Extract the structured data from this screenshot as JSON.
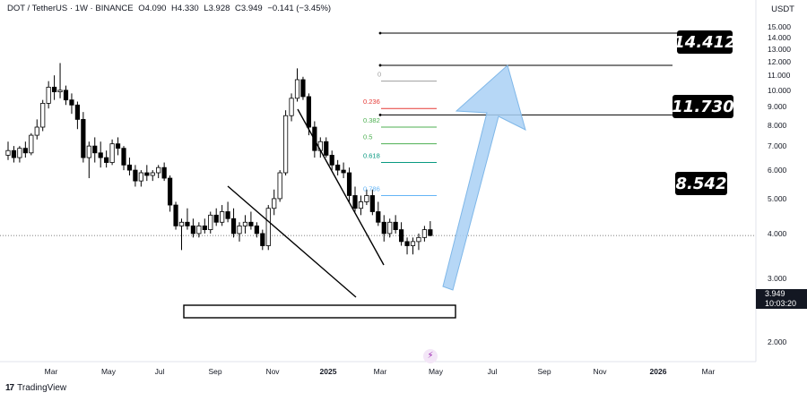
{
  "header": {
    "symbol": "DOT / TetherUS · 1W · BINANCE",
    "open": "O4.090",
    "high": "H4.330",
    "low": "L3.928",
    "close": "C3.949",
    "change": "−0.141 (−3.45%)"
  },
  "currency_label": "USDT",
  "price_tag": {
    "price": "3.949",
    "countdown": "10:03:20"
  },
  "level_labels": [
    "14.412",
    "11.730",
    "8.542"
  ],
  "footer": {
    "logo": "17",
    "brand": "TradingView"
  },
  "flash_icon": "lightning-icon",
  "colors": {
    "bull": "#ffffff",
    "bear": "#000000",
    "arrow": "#a9d0f5",
    "fib_red": "#e53935",
    "fib_green": "#4caf50",
    "fib_teal": "#089981",
    "fib_blue": "#64b5f6"
  },
  "chart_data": {
    "type": "candlestick",
    "y_scale": "log",
    "ylim": [
      1.6,
      15.5
    ],
    "y_ticks": [
      "15.000",
      "14.000",
      "13.000",
      "12.000",
      "11.000",
      "10.000",
      "9.000",
      "8.000",
      "7.000",
      "6.000",
      "5.000",
      "4.000",
      "3.000",
      "2.000"
    ],
    "x_ticks": [
      "Mar",
      "May",
      "Jul",
      "Sep",
      "Nov",
      "2025",
      "Mar",
      "May",
      "Jul",
      "Sep",
      "Nov",
      "2026",
      "Mar"
    ],
    "candles": [
      {
        "o": 6.6,
        "h": 7.2,
        "l": 6.4,
        "c": 6.8
      },
      {
        "o": 6.8,
        "h": 7.0,
        "l": 6.3,
        "c": 6.5
      },
      {
        "o": 6.5,
        "h": 7.0,
        "l": 6.3,
        "c": 6.9
      },
      {
        "o": 6.9,
        "h": 7.2,
        "l": 6.5,
        "c": 6.7
      },
      {
        "o": 6.7,
        "h": 7.6,
        "l": 6.6,
        "c": 7.5
      },
      {
        "o": 7.5,
        "h": 8.3,
        "l": 7.3,
        "c": 7.9
      },
      {
        "o": 7.9,
        "h": 9.4,
        "l": 7.7,
        "c": 9.2
      },
      {
        "o": 9.2,
        "h": 10.6,
        "l": 8.9,
        "c": 10.2
      },
      {
        "o": 10.2,
        "h": 11.0,
        "l": 9.4,
        "c": 9.9
      },
      {
        "o": 9.9,
        "h": 11.9,
        "l": 9.5,
        "c": 10.0
      },
      {
        "o": 10.0,
        "h": 10.3,
        "l": 9.1,
        "c": 9.4
      },
      {
        "o": 9.4,
        "h": 9.8,
        "l": 8.6,
        "c": 9.1
      },
      {
        "o": 9.1,
        "h": 9.3,
        "l": 7.8,
        "c": 8.3
      },
      {
        "o": 8.3,
        "h": 8.7,
        "l": 6.3,
        "c": 6.5
      },
      {
        "o": 6.5,
        "h": 7.2,
        "l": 5.7,
        "c": 7.0
      },
      {
        "o": 7.0,
        "h": 7.4,
        "l": 6.3,
        "c": 6.7
      },
      {
        "o": 6.7,
        "h": 7.2,
        "l": 6.1,
        "c": 6.5
      },
      {
        "o": 6.5,
        "h": 6.8,
        "l": 6.1,
        "c": 6.3
      },
      {
        "o": 6.3,
        "h": 7.3,
        "l": 6.2,
        "c": 7.1
      },
      {
        "o": 7.1,
        "h": 7.4,
        "l": 6.6,
        "c": 6.9
      },
      {
        "o": 6.9,
        "h": 7.0,
        "l": 6.0,
        "c": 6.2
      },
      {
        "o": 6.2,
        "h": 6.5,
        "l": 5.8,
        "c": 6.0
      },
      {
        "o": 6.0,
        "h": 6.2,
        "l": 5.4,
        "c": 5.6
      },
      {
        "o": 5.6,
        "h": 6.0,
        "l": 5.4,
        "c": 5.9
      },
      {
        "o": 5.9,
        "h": 6.2,
        "l": 5.6,
        "c": 5.8
      },
      {
        "o": 5.8,
        "h": 6.0,
        "l": 5.6,
        "c": 5.9
      },
      {
        "o": 5.9,
        "h": 6.2,
        "l": 5.7,
        "c": 6.1
      },
      {
        "o": 6.1,
        "h": 6.3,
        "l": 5.6,
        "c": 5.7
      },
      {
        "o": 5.7,
        "h": 5.8,
        "l": 4.6,
        "c": 4.8
      },
      {
        "o": 4.8,
        "h": 4.9,
        "l": 4.1,
        "c": 4.2
      },
      {
        "o": 4.2,
        "h": 4.4,
        "l": 3.6,
        "c": 4.3
      },
      {
        "o": 4.3,
        "h": 4.7,
        "l": 4.1,
        "c": 4.2
      },
      {
        "o": 4.2,
        "h": 4.4,
        "l": 3.9,
        "c": 4.0
      },
      {
        "o": 4.0,
        "h": 4.3,
        "l": 3.9,
        "c": 4.2
      },
      {
        "o": 4.2,
        "h": 4.4,
        "l": 4.0,
        "c": 4.1
      },
      {
        "o": 4.1,
        "h": 4.6,
        "l": 4.0,
        "c": 4.5
      },
      {
        "o": 4.5,
        "h": 4.7,
        "l": 4.2,
        "c": 4.3
      },
      {
        "o": 4.3,
        "h": 4.8,
        "l": 4.2,
        "c": 4.6
      },
      {
        "o": 4.6,
        "h": 4.9,
        "l": 4.3,
        "c": 4.4
      },
      {
        "o": 4.4,
        "h": 4.7,
        "l": 3.9,
        "c": 4.0
      },
      {
        "o": 4.0,
        "h": 4.3,
        "l": 3.8,
        "c": 4.2
      },
      {
        "o": 4.2,
        "h": 4.5,
        "l": 4.0,
        "c": 4.3
      },
      {
        "o": 4.3,
        "h": 4.6,
        "l": 4.1,
        "c": 4.2
      },
      {
        "o": 4.2,
        "h": 4.3,
        "l": 3.9,
        "c": 4.0
      },
      {
        "o": 4.0,
        "h": 4.1,
        "l": 3.6,
        "c": 3.7
      },
      {
        "o": 3.7,
        "h": 4.8,
        "l": 3.6,
        "c": 4.7
      },
      {
        "o": 4.7,
        "h": 5.3,
        "l": 4.5,
        "c": 5.0
      },
      {
        "o": 5.0,
        "h": 6.0,
        "l": 4.9,
        "c": 5.9
      },
      {
        "o": 5.9,
        "h": 8.8,
        "l": 5.8,
        "c": 8.5
      },
      {
        "o": 8.5,
        "h": 9.8,
        "l": 8.2,
        "c": 9.5
      },
      {
        "o": 9.5,
        "h": 11.5,
        "l": 9.3,
        "c": 10.7
      },
      {
        "o": 10.7,
        "h": 10.9,
        "l": 9.4,
        "c": 9.6
      },
      {
        "o": 9.6,
        "h": 9.8,
        "l": 7.5,
        "c": 7.9
      },
      {
        "o": 7.9,
        "h": 8.2,
        "l": 6.5,
        "c": 6.8
      },
      {
        "o": 6.8,
        "h": 7.4,
        "l": 6.5,
        "c": 7.2
      },
      {
        "o": 7.2,
        "h": 7.4,
        "l": 6.5,
        "c": 6.6
      },
      {
        "o": 6.6,
        "h": 6.8,
        "l": 6.0,
        "c": 6.2
      },
      {
        "o": 6.2,
        "h": 6.4,
        "l": 5.8,
        "c": 6.0
      },
      {
        "o": 6.0,
        "h": 6.3,
        "l": 5.7,
        "c": 5.9
      },
      {
        "o": 5.9,
        "h": 6.1,
        "l": 4.9,
        "c": 5.1
      },
      {
        "o": 5.1,
        "h": 5.4,
        "l": 4.6,
        "c": 4.7
      },
      {
        "o": 4.7,
        "h": 5.1,
        "l": 4.5,
        "c": 4.9
      },
      {
        "o": 4.9,
        "h": 5.3,
        "l": 4.8,
        "c": 5.1
      },
      {
        "o": 5.1,
        "h": 5.3,
        "l": 4.5,
        "c": 4.6
      },
      {
        "o": 4.6,
        "h": 4.9,
        "l": 4.2,
        "c": 4.3
      },
      {
        "o": 4.3,
        "h": 4.5,
        "l": 3.8,
        "c": 4.0
      },
      {
        "o": 4.0,
        "h": 4.4,
        "l": 3.9,
        "c": 4.3
      },
      {
        "o": 4.3,
        "h": 4.5,
        "l": 4.0,
        "c": 4.1
      },
      {
        "o": 4.1,
        "h": 4.3,
        "l": 3.7,
        "c": 3.8
      },
      {
        "o": 3.8,
        "h": 3.9,
        "l": 3.5,
        "c": 3.7
      },
      {
        "o": 3.7,
        "h": 3.9,
        "l": 3.5,
        "c": 3.8
      },
      {
        "o": 3.8,
        "h": 4.0,
        "l": 3.6,
        "c": 3.9
      },
      {
        "o": 3.9,
        "h": 4.2,
        "l": 3.8,
        "c": 4.1
      },
      {
        "o": 4.1,
        "h": 4.33,
        "l": 3.93,
        "c": 3.949
      }
    ],
    "fib_levels": [
      {
        "label": "0",
        "value": 10.6
      },
      {
        "label": "0.236",
        "value": 8.9
      },
      {
        "label": "0.382",
        "value": 7.9
      },
      {
        "label": "0.5",
        "value": 7.1
      },
      {
        "label": "0.618",
        "value": 6.3
      },
      {
        "label": "0.786",
        "value": 5.1
      }
    ],
    "target_levels": [
      14.412,
      11.73,
      8.542
    ],
    "current_price": 3.949
  }
}
